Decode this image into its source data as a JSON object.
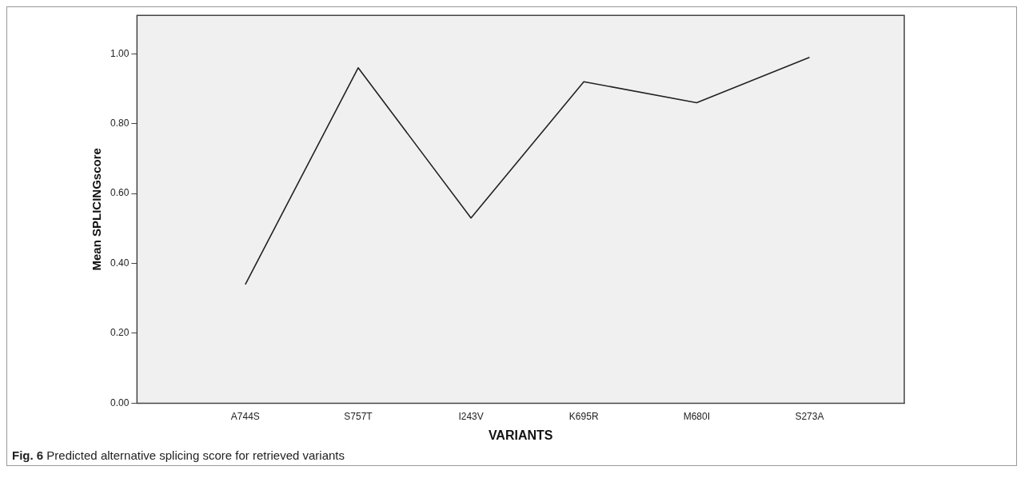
{
  "chart_data": {
    "type": "line",
    "xlabel": "VARIANTS",
    "ylabel": "Mean SPLICINGscore",
    "categories": [
      "A744S",
      "S757T",
      "I243V",
      "K695R",
      "M680I",
      "S273A"
    ],
    "series": [
      {
        "color": "#222222",
        "values": [
          0.34,
          0.96,
          0.53,
          0.92,
          0.86,
          0.99
        ]
      }
    ],
    "ylim": [
      0,
      1.11
    ],
    "yticks": [
      {
        "value": 0,
        "label": "0.00"
      },
      {
        "value": 0.2,
        "label": "0.20"
      },
      {
        "value": 0.4,
        "label": "0.40"
      },
      {
        "value": 0.6,
        "label": "0.60"
      },
      {
        "value": 0.8,
        "label": "0.80"
      },
      {
        "value": 1,
        "label": "1.00"
      }
    ],
    "grid": false,
    "legend": false,
    "marker": "none",
    "line_style": "solid",
    "annotations": [
      "Fig. 6 Predicted alternative splicing score for retrieved variants"
    ]
  }
}
